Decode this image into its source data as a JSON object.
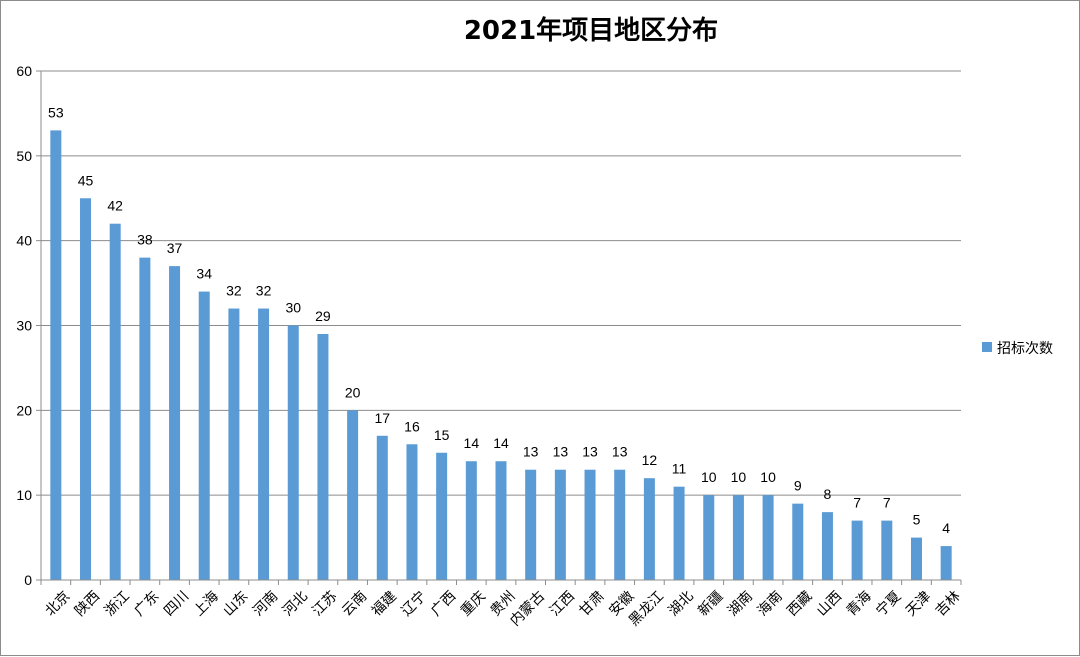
{
  "chart_data": {
    "type": "bar",
    "title": "2021年项目地区分布",
    "categories": [
      "北京",
      "陕西",
      "浙江",
      "广东",
      "四川",
      "上海",
      "山东",
      "河南",
      "河北",
      "江苏",
      "云南",
      "福建",
      "辽宁",
      "广西",
      "重庆",
      "贵州",
      "内蒙古",
      "江西",
      "甘肃",
      "安徽",
      "黑龙江",
      "湖北",
      "新疆",
      "湖南",
      "海南",
      "西藏",
      "山西",
      "青海",
      "宁夏",
      "天津",
      "吉林"
    ],
    "series": [
      {
        "name": "招标次数",
        "values": [
          53,
          45,
          42,
          38,
          37,
          34,
          32,
          32,
          30,
          29,
          20,
          17,
          16,
          15,
          14,
          14,
          13,
          13,
          13,
          13,
          12,
          11,
          10,
          10,
          10,
          9,
          8,
          7,
          7,
          5,
          4
        ],
        "color": "#5b9bd5"
      }
    ],
    "yticks": [
      "0",
      "10",
      "20",
      "30",
      "40",
      "50",
      "60"
    ],
    "ylim": [
      0,
      60
    ],
    "grid": true,
    "legend_position": "right"
  }
}
